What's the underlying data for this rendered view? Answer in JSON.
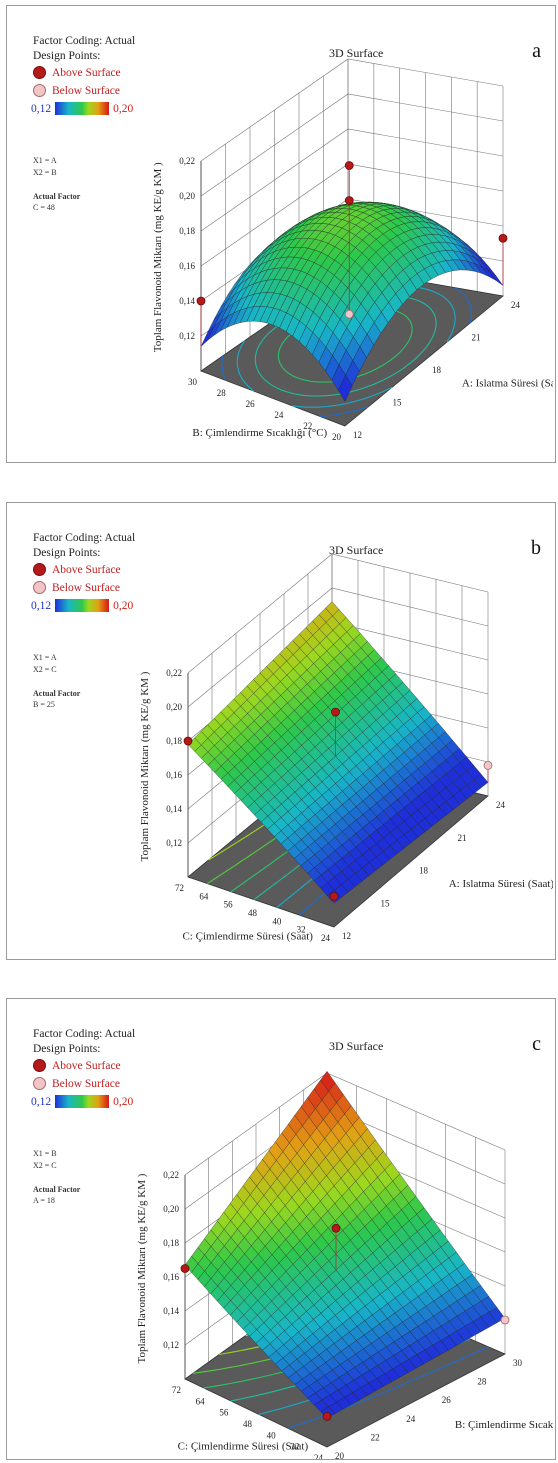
{
  "colors": {
    "low": "#1f2fd8",
    "high": "#d61818",
    "above": "#b51a1a",
    "below": "#f2c6c6",
    "floor": "#5a5a5a"
  },
  "panels": [
    {
      "letter": "a",
      "title": "3D Surface",
      "factor_coding": "Factor Coding: Actual",
      "design_points": "Design Points:",
      "above": "Above Surface",
      "below": "Below Surface",
      "cmin": "0,12",
      "cmax": "0,20",
      "x1": "X1 = A",
      "x2": "X2 = B",
      "actual_factor_label": "Actual Factor",
      "actual_factor": "C = 48",
      "zlabel": "Toplam Flavonoid Miktarı (mg KE/g KM )",
      "xlabel": "A: Islatma Süresi (Saat)",
      "ylabel": "B: Çimlendirme Sıcaklığı (°C)",
      "zticks": [
        "0,12",
        "0,14",
        "0,16",
        "0,18",
        "0,20",
        "0,22"
      ],
      "xticks": [
        "12",
        "15",
        "18",
        "21",
        "24"
      ],
      "yticks": [
        "20",
        "22",
        "24",
        "26",
        "28",
        "30"
      ]
    },
    {
      "letter": "b",
      "title": "3D Surface",
      "factor_coding": "Factor Coding: Actual",
      "design_points": "Design Points:",
      "above": "Above Surface",
      "below": "Below Surface",
      "cmin": "0,12",
      "cmax": "0,20",
      "x1": "X1 = A",
      "x2": "X2 = C",
      "actual_factor_label": "Actual Factor",
      "actual_factor": "B = 25",
      "zlabel": "Toplam Flavonoid Miktarı (mg KE/g KM )",
      "xlabel": "A: Islatma Süresi (Saat)",
      "ylabel": "C: Çimlendirme Süresi (Saat)",
      "zticks": [
        "0,12",
        "0,14",
        "0,16",
        "0,18",
        "0,20",
        "0,22"
      ],
      "xticks": [
        "12",
        "15",
        "18",
        "21",
        "24"
      ],
      "yticks": [
        "24",
        "32",
        "40",
        "48",
        "56",
        "64",
        "72"
      ]
    },
    {
      "letter": "c",
      "title": "3D Surface",
      "factor_coding": "Factor Coding: Actual",
      "design_points": "Design Points:",
      "above": "Above Surface",
      "below": "Below Surface",
      "cmin": "0,12",
      "cmax": "0,20",
      "x1": "X1 = B",
      "x2": "X2 = C",
      "actual_factor_label": "Actual Factor",
      "actual_factor": "A = 18",
      "zlabel": "Toplam Flavonoid Miktarı (mg KE/g KM )",
      "xlabel": "B: Çimlendirme Sıcaklığı (°C",
      "ylabel": "C: Çimlendirme Süresi (Saat)",
      "zticks": [
        "0,12",
        "0,14",
        "0,16",
        "0,18",
        "0,20",
        "0,22"
      ],
      "xticks": [
        "20",
        "22",
        "24",
        "26",
        "28",
        "30"
      ],
      "yticks": [
        "24",
        "32",
        "40",
        "48",
        "56",
        "64",
        "72"
      ]
    }
  ],
  "chart_data": [
    {
      "type": "surface",
      "title": "3D Surface",
      "xlabel": "A: Islatma Süresi (Saat)",
      "ylabel": "B: Çimlendirme Sıcaklığı (°C)",
      "zlabel": "Toplam Flavonoid Miktarı (mg KE/g KM )",
      "xlim": [
        12,
        24
      ],
      "ylim": [
        20,
        30
      ],
      "zlim": [
        0.12,
        0.22
      ],
      "corners": {
        "x12_y20": 0.14,
        "x24_y20": 0.13,
        "x12_y30": 0.138,
        "x24_y30": 0.133,
        "center": 0.172
      },
      "above_points": [
        {
          "x": 12,
          "y": 30,
          "z": 0.14
        },
        {
          "x": 24,
          "y": 20,
          "z": 0.133
        },
        {
          "x": 18,
          "y": 25,
          "z": 0.2
        },
        {
          "x": 18,
          "y": 25,
          "z": 0.18
        }
      ],
      "below_points": [
        {
          "x": 18,
          "y": 25,
          "z": 0.115
        }
      ]
    },
    {
      "type": "surface",
      "title": "3D Surface",
      "xlabel": "A: Islatma Süresi (Saat)",
      "ylabel": "C: Çimlendirme Süresi (Saat)",
      "zlabel": "Toplam Flavonoid Miktarı (mg KE/g KM )",
      "xlim": [
        12,
        24
      ],
      "ylim": [
        24,
        72
      ],
      "zlim": [
        0.12,
        0.22
      ],
      "corners": {
        "x12_y24": 0.116,
        "x24_y24": 0.112,
        "x12_y72": 0.178,
        "x24_y72": 0.205
      },
      "above_points": [
        {
          "x": 12,
          "y": 72,
          "z": 0.18
        },
        {
          "x": 18,
          "y": 48,
          "z": 0.175
        },
        {
          "x": 12,
          "y": 24,
          "z": 0.118
        }
      ],
      "below_points": [
        {
          "x": 24,
          "y": 24,
          "z": 0.118
        }
      ]
    },
    {
      "type": "surface",
      "title": "3D Surface",
      "xlabel": "B: Çimlendirme Sıcaklığı (°C",
      "ylabel": "C: Çimlendirme Süresi (Saat)",
      "zlabel": "Toplam Flavonoid Miktarı (mg KE/g KM )",
      "xlim": [
        20,
        30
      ],
      "ylim": [
        24,
        72
      ],
      "zlim": [
        0.12,
        0.22
      ],
      "corners": {
        "x20_y24": 0.118,
        "x30_y24": 0.12,
        "x20_y72": 0.165,
        "x30_y72": 0.222
      },
      "above_points": [
        {
          "x": 20,
          "y": 72,
          "z": 0.165
        },
        {
          "x": 25,
          "y": 48,
          "z": 0.18
        },
        {
          "x": 20,
          "y": 24,
          "z": 0.118
        }
      ],
      "below_points": [
        {
          "x": 30,
          "y": 24,
          "z": 0.12
        }
      ]
    }
  ]
}
